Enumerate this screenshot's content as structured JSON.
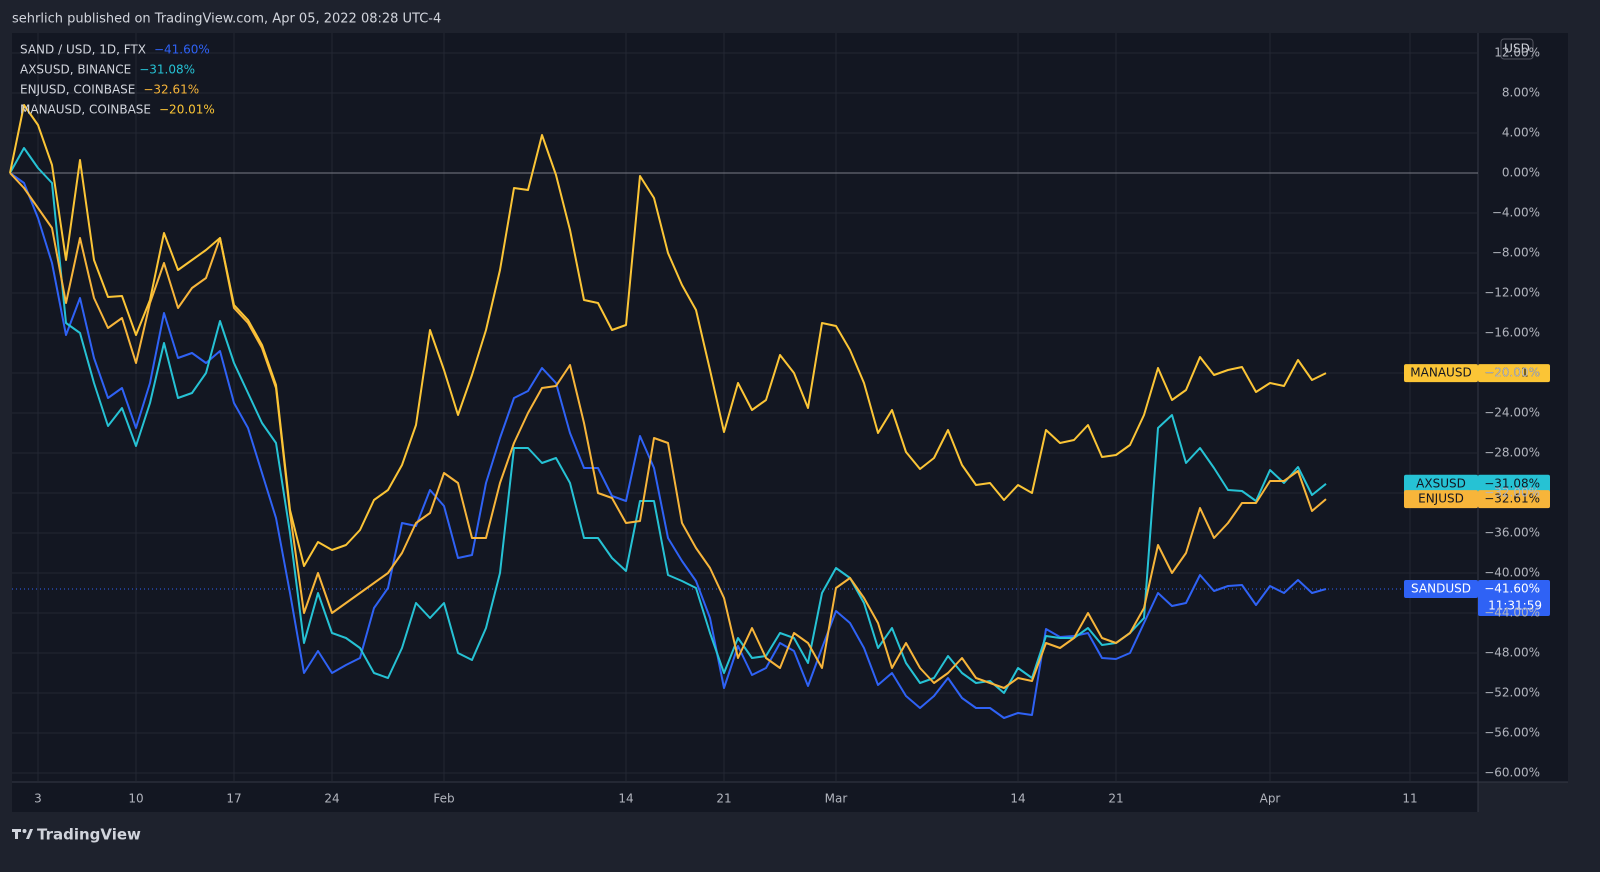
{
  "header": {
    "publisher": "sehrlich published on TradingView.com, Apr 05, 2022 08:28 UTC-4"
  },
  "footer": {
    "brand": "TradingView"
  },
  "chart_data": {
    "type": "line",
    "currency": "USD",
    "countdown": "11:31:59",
    "baseline": 0,
    "grid": true,
    "categories": [
      null,
      null,
      "3",
      null,
      null,
      null,
      null,
      null,
      null,
      "10",
      null,
      null,
      null,
      null,
      null,
      null,
      "17",
      null,
      null,
      null,
      null,
      null,
      null,
      "24",
      null,
      null,
      null,
      null,
      null,
      null,
      null,
      "Feb",
      null,
      null,
      null,
      null,
      null,
      null,
      null,
      null,
      null,
      null,
      null,
      null,
      "14",
      null,
      null,
      null,
      null,
      null,
      null,
      "21",
      null,
      null,
      null,
      null,
      null,
      null,
      null,
      "Mar",
      null,
      null,
      null,
      null,
      null,
      null,
      null,
      null,
      null,
      null,
      null,
      null,
      "14",
      null,
      null,
      null,
      null,
      null,
      null,
      "21",
      null,
      null,
      null,
      null,
      null,
      null,
      null,
      null,
      null,
      null,
      "Apr",
      null,
      null,
      null,
      null,
      null,
      null,
      null,
      null,
      null,
      "11"
    ],
    "ylim": [
      -60.9,
      14
    ],
    "yticks": [
      {
        "value": 12,
        "label": "12.00%"
      },
      {
        "value": 8,
        "label": "8.00%"
      },
      {
        "value": 4,
        "label": "4.00%"
      },
      {
        "value": 0,
        "label": "0.00%"
      },
      {
        "value": -4,
        "label": "−4.00%"
      },
      {
        "value": -8,
        "label": "−8.00%"
      },
      {
        "value": -12,
        "label": "−12.00%"
      },
      {
        "value": -16,
        "label": "−16.00%"
      },
      {
        "value": -20,
        "label": "−20.00%"
      },
      {
        "value": -24,
        "label": "−24.00%"
      },
      {
        "value": -28,
        "label": "−28.00%"
      },
      {
        "value": -32,
        "label": "−32.00%"
      },
      {
        "value": -36,
        "label": "−36.00%"
      },
      {
        "value": -40,
        "label": "−40.00%"
      },
      {
        "value": -44,
        "label": "−44.00%"
      },
      {
        "value": -48,
        "label": "−48.00%"
      },
      {
        "value": -52,
        "label": "−52.00%"
      },
      {
        "value": -56,
        "label": "−56.00%"
      },
      {
        "value": -60,
        "label": "−60.00%"
      }
    ],
    "series": [
      {
        "name": "SAND / USD, 1D, FTX",
        "tag": "SANDUSD",
        "color": "#2f62f5",
        "last_value_label": "−41.60%",
        "price_line": true,
        "values": [
          0,
          -1,
          -4.5,
          -9,
          -16.2,
          -12.5,
          -18.5,
          -22.5,
          -21.5,
          -25.5,
          -21,
          -14,
          -18.5,
          -18,
          -19,
          -17.8,
          -23,
          -25.5,
          -30,
          -34.5,
          -42,
          -50,
          -47.8,
          -50,
          -49.2,
          -48.5,
          -43.5,
          -41.5,
          -35,
          -35.3,
          -31.7,
          -33.3,
          -38.5,
          -38.2,
          -31,
          -26.5,
          -22.5,
          -21.8,
          -19.5,
          -21,
          -26,
          -29.5,
          -29.5,
          -32.3,
          -32.8,
          -26.3,
          -29.5,
          -36.5,
          -38.8,
          -40.8,
          -44.5,
          -51.5,
          -47.3,
          -50.2,
          -49.5,
          -47,
          -47.8,
          -51.3,
          -47.5,
          -43.8,
          -45,
          -47.5,
          -51.2,
          -50,
          -52.3,
          -53.5,
          -52.3,
          -50.5,
          -52.5,
          -53.5,
          -53.5,
          -54.5,
          -54,
          -54.2,
          -45.6,
          -46.4,
          -46.3,
          -46,
          -48.5,
          -48.6,
          -48,
          -45,
          -42,
          -43.3,
          -43,
          -40.2,
          -41.8,
          -41.3,
          -41.2,
          -43.2,
          -41.3,
          -42,
          -40.7,
          -42,
          -41.6,
          null,
          null,
          null,
          null,
          null,
          null
        ]
      },
      {
        "name": "AXSUSD, BINANCE",
        "tag": "AXSUSD",
        "color": "#26c2d4",
        "last_value_label": "−31.08%",
        "values": [
          0,
          2.5,
          0.5,
          -1,
          -15,
          -16,
          -21,
          -25.3,
          -23.5,
          -27.3,
          -23,
          -17,
          -22.5,
          -22,
          -20,
          -14.8,
          -19,
          -22,
          -25,
          -27,
          -36,
          -47,
          -42,
          -46,
          -46.5,
          -47.5,
          -50,
          -50.5,
          -47.5,
          -43,
          -44.5,
          -43,
          -48,
          -48.7,
          -45.5,
          -40,
          -27.5,
          -27.5,
          -29,
          -28.5,
          -31,
          -36.5,
          -36.5,
          -38.5,
          -39.8,
          -32.8,
          -32.8,
          -40.2,
          -40.8,
          -41.5,
          -46,
          -50,
          -46.5,
          -48.5,
          -48.3,
          -46,
          -46.5,
          -49,
          -42,
          -39.5,
          -40.5,
          -43,
          -47.5,
          -45.5,
          -49,
          -51,
          -50.5,
          -48.3,
          -50,
          -51,
          -50.8,
          -52,
          -49.5,
          -50.5,
          -46.3,
          -46.5,
          -46.5,
          -45.5,
          -47.2,
          -47,
          -46,
          -44.5,
          -25.5,
          -24.2,
          -29,
          -27.5,
          -29.5,
          -31.7,
          -31.8,
          -32.8,
          -29.7,
          -31,
          -29.4,
          -32.2,
          -31.08,
          null,
          null,
          null,
          null,
          null,
          null
        ]
      },
      {
        "name": "ENJUSD, COINBASE",
        "tag": "ENJUSD",
        "color": "#f7b53a",
        "last_value_label": "−32.61%",
        "values": [
          0,
          -1.5,
          -3.5,
          -5.5,
          -13,
          -6.5,
          -12.5,
          -15.5,
          -14.5,
          -19,
          -13,
          -9,
          -13.5,
          -11.5,
          -10.5,
          -6.5,
          -13.5,
          -15,
          -17.5,
          -21.5,
          -34,
          -44,
          -40,
          -44,
          -43,
          -42,
          -41,
          -40,
          -38,
          -35,
          -34,
          -30,
          -31,
          -36.5,
          -36.5,
          -31,
          -27,
          -24,
          -21.5,
          -21.3,
          -19.2,
          -25,
          -32,
          -32.5,
          -35,
          -34.8,
          -26.5,
          -27,
          -35,
          -37.5,
          -39.5,
          -42.5,
          -48.5,
          -45.5,
          -48.5,
          -49.5,
          -46,
          -47,
          -49.5,
          -41.5,
          -40.5,
          -42.5,
          -45,
          -49.5,
          -47,
          -49.5,
          -51,
          -50,
          -48.5,
          -50.5,
          -51,
          -51.5,
          -50.5,
          -50.8,
          -47,
          -47.5,
          -46.5,
          -44,
          -46.5,
          -47,
          -46,
          -43.5,
          -37.2,
          -40,
          -38,
          -33.5,
          -36.5,
          -35,
          -33,
          -33,
          -30.8,
          -30.8,
          -29.8,
          -33.8,
          -32.61,
          null,
          null,
          null,
          null,
          null,
          null
        ]
      },
      {
        "name": "MANAUSD, COINBASE",
        "tag": "MANAUSD",
        "color": "#fbc536",
        "last_value_label": "−20.01%",
        "values": [
          0,
          6.8,
          4.8,
          0.8,
          -8.7,
          1.3,
          -8.7,
          -12.4,
          -12.3,
          -16.2,
          -12.7,
          -6,
          -9.7,
          -8.7,
          -7.7,
          -6.5,
          -13.2,
          -14.7,
          -17.2,
          -21.2,
          -33.7,
          -39.3,
          -36.9,
          -37.7,
          -37.2,
          -35.7,
          -32.7,
          -31.7,
          -29.2,
          -25.2,
          -15.7,
          -19.7,
          -24.2,
          -20.2,
          -15.7,
          -9.7,
          -1.5,
          -1.7,
          3.8,
          -0.2,
          -5.7,
          -12.7,
          -13,
          -15.7,
          -15.2,
          -0.3,
          -2.5,
          -8,
          -11.2,
          -13.7,
          -19.7,
          -25.9,
          -21,
          -23.7,
          -22.7,
          -18.2,
          -20,
          -23.5,
          -15,
          -15.3,
          -17.7,
          -21,
          -26,
          -23.7,
          -27.9,
          -29.6,
          -28.5,
          -25.7,
          -29.2,
          -31.2,
          -31,
          -32.7,
          -31.2,
          -32,
          -25.7,
          -27,
          -26.7,
          -25.2,
          -28.4,
          -28.2,
          -27.2,
          -24.2,
          -19.5,
          -22.7,
          -21.7,
          -18.4,
          -20.2,
          -19.7,
          -19.4,
          -21.9,
          -21,
          -21.3,
          -18.7,
          -20.7,
          -20.01,
          null,
          null,
          null,
          null,
          null,
          null
        ]
      }
    ]
  }
}
